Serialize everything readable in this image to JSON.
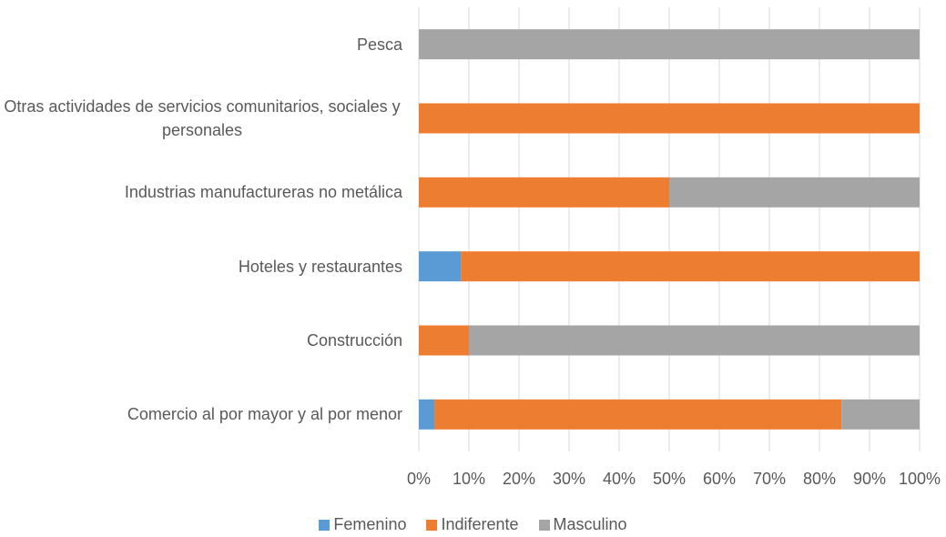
{
  "chart_data": {
    "type": "stacked-bar-horizontal",
    "categories": [
      "Pesca",
      "Otras actividades de servicios comunitarios, sociales y personales",
      "Industrias manufactureras no metálica",
      "Hoteles y restaurantes",
      "Construcción",
      "Comercio al por mayor y al por menor"
    ],
    "series": [
      {
        "name": "Femenino",
        "color": "#5b9bd5",
        "values": [
          0,
          0,
          0,
          8.4,
          0,
          3.1
        ]
      },
      {
        "name": "Indiferente",
        "color": "#ed7d31",
        "values": [
          0,
          100,
          50,
          91.6,
          10,
          81.3
        ]
      },
      {
        "name": "Masculino",
        "color": "#a5a5a5",
        "values": [
          100,
          0,
          50,
          0,
          90,
          15.6
        ]
      }
    ],
    "xlim": [
      0,
      100
    ],
    "xticks": [
      {
        "value": 0,
        "label": "0%"
      },
      {
        "value": 10,
        "label": "10%"
      },
      {
        "value": 20,
        "label": "20%"
      },
      {
        "value": 30,
        "label": "30%"
      },
      {
        "value": 40,
        "label": "40%"
      },
      {
        "value": 50,
        "label": "50%"
      },
      {
        "value": 60,
        "label": "60%"
      },
      {
        "value": 70,
        "label": "70%"
      },
      {
        "value": 80,
        "label": "80%"
      },
      {
        "value": 90,
        "label": "90%"
      },
      {
        "value": 100,
        "label": "100%"
      }
    ],
    "grid": true,
    "legend": "bottom"
  }
}
